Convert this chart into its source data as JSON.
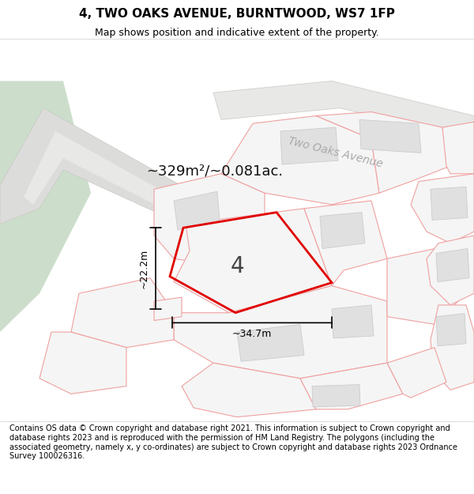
{
  "title": "4, TWO OAKS AVENUE, BURNTWOOD, WS7 1FP",
  "subtitle": "Map shows position and indicative extent of the property.",
  "footer": "Contains OS data © Crown copyright and database right 2021. This information is subject to Crown copyright and database rights 2023 and is reproduced with the permission of HM Land Registry. The polygons (including the associated geometry, namely x, y co-ordinates) are subject to Crown copyright and database rights 2023 Ordnance Survey 100026316.",
  "area_text": "~329m²/~0.081ac.",
  "street_label": "Two Oaks Avenue",
  "plot_number": "4",
  "width_label": "~34.7m",
  "height_label": "~22.2m",
  "bg_color": "#ffffff",
  "highlight_color": "#e00000",
  "green_color": "#ccdecb",
  "road_color": "#dcdcda",
  "road_inner_color": "#e8e8e6",
  "plot_outline_color": "#f0a0a0",
  "building_fill": "#e0e0e0",
  "building_edge": "#cccccc",
  "plot_fill": "#f5f5f5",
  "title_fontsize": 11,
  "subtitle_fontsize": 9,
  "footer_fontsize": 7.0
}
